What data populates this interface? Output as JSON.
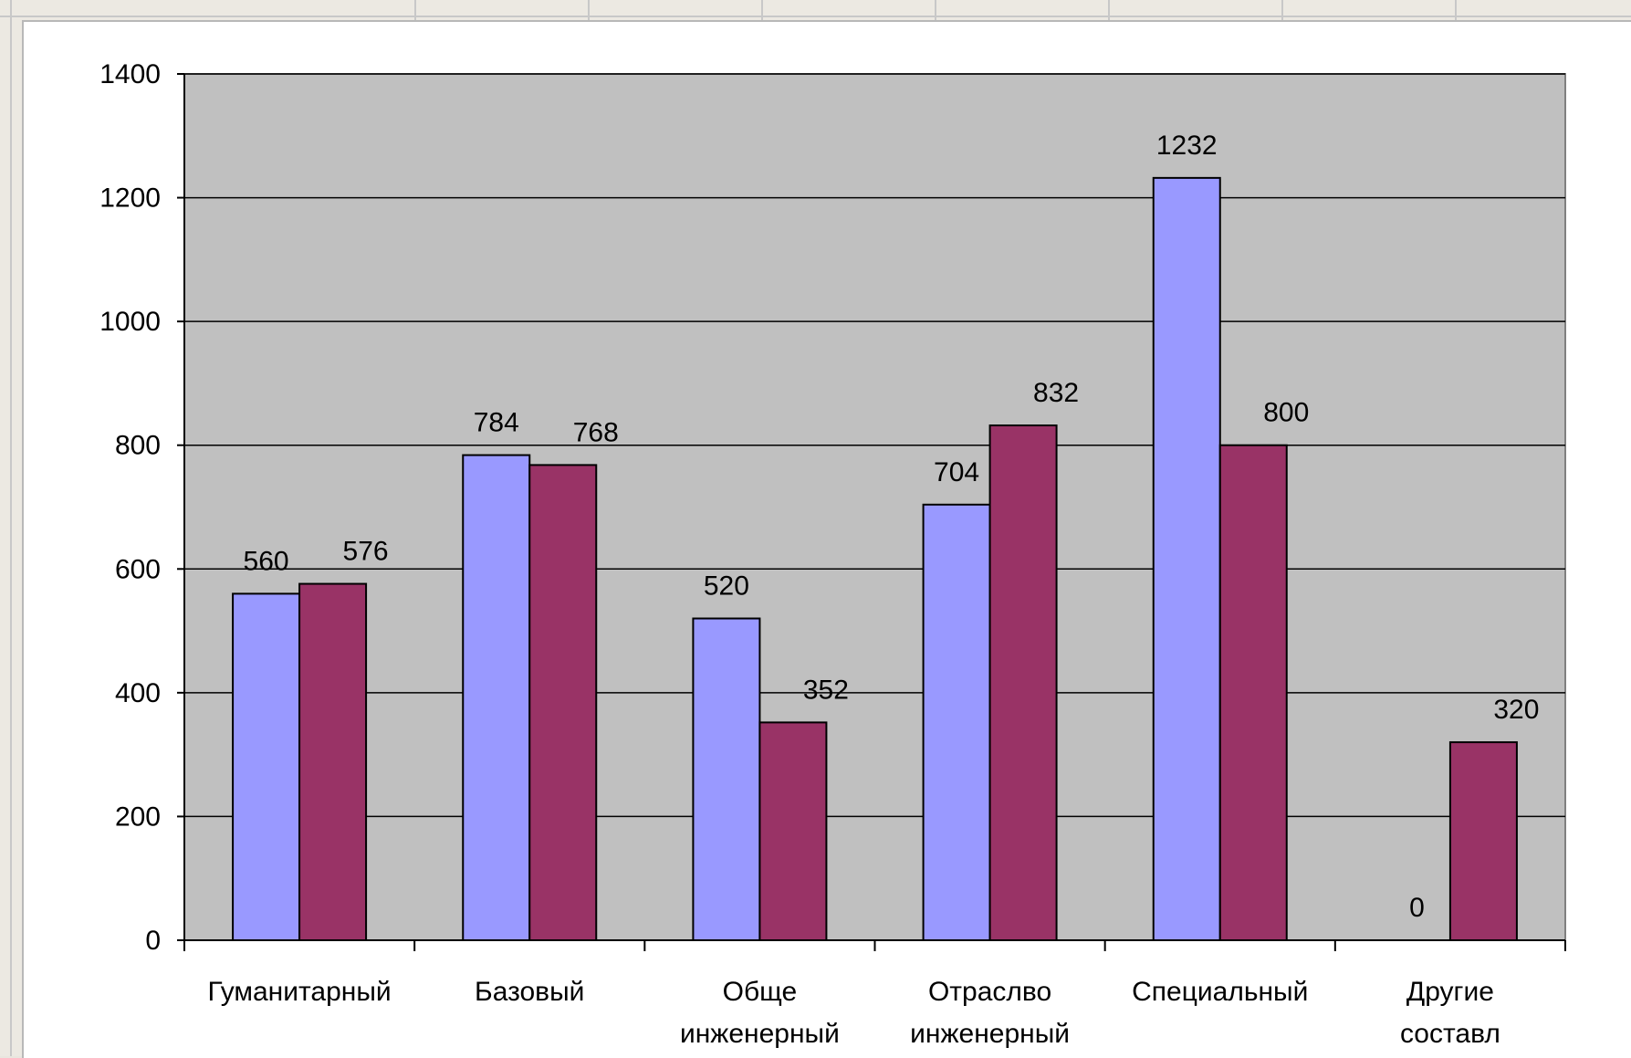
{
  "chart_data": {
    "type": "bar",
    "title": "",
    "xlabel": "",
    "ylabel": "",
    "ylim": [
      0,
      1400
    ],
    "yticks": [
      0,
      200,
      400,
      600,
      800,
      1000,
      1200,
      1400
    ],
    "grid": true,
    "legend": "none",
    "plot_background": "#c0c0c0",
    "categories": [
      [
        "Гуманитарный"
      ],
      [
        "Базовый"
      ],
      [
        "Обще",
        "инженерный"
      ],
      [
        "Отраслво",
        "инженерный"
      ],
      [
        "Специальный"
      ],
      [
        "Другие",
        "составл"
      ]
    ],
    "series": [
      {
        "color": "#9999ff",
        "values": [
          560,
          784,
          520,
          704,
          1232,
          0
        ],
        "labels": [
          "560",
          "784",
          "520",
          "704",
          "1232",
          "0"
        ]
      },
      {
        "color": "#993366",
        "values": [
          576,
          768,
          352,
          832,
          800,
          320
        ],
        "labels": [
          "576",
          "768",
          "352",
          "832",
          "800",
          "320"
        ]
      }
    ]
  }
}
